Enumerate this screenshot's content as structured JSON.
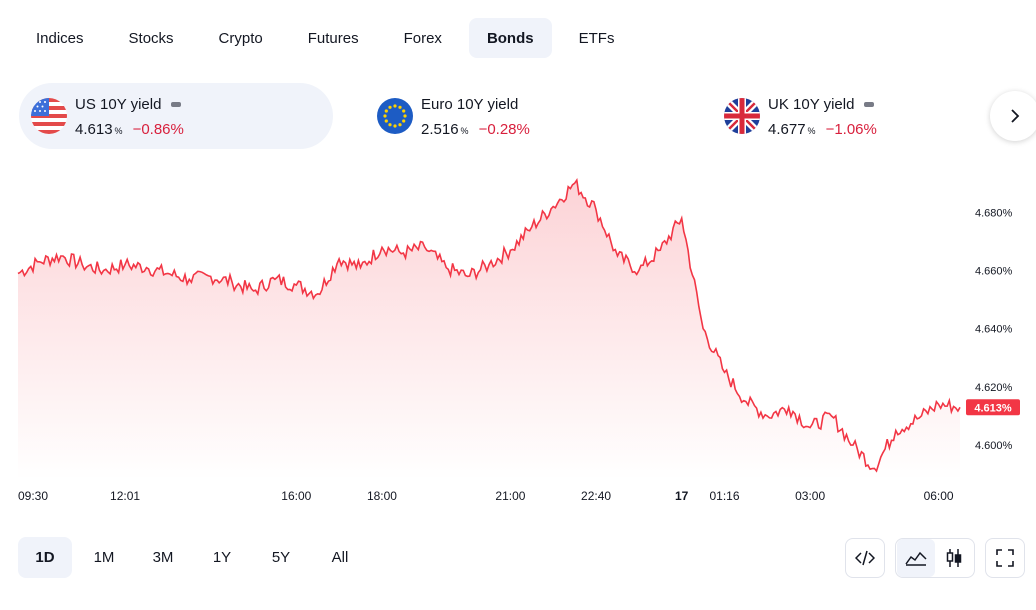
{
  "tabs": [
    {
      "label": "Indices",
      "active": false
    },
    {
      "label": "Stocks",
      "active": false
    },
    {
      "label": "Crypto",
      "active": false
    },
    {
      "label": "Futures",
      "active": false
    },
    {
      "label": "Forex",
      "active": false
    },
    {
      "label": "Bonds",
      "active": true
    },
    {
      "label": "ETFs",
      "active": false
    }
  ],
  "quotes": [
    {
      "name": "US 10Y yield",
      "value": "4.613",
      "unit": "%",
      "change": "−0.86%",
      "flag": "us-flag-icon",
      "active": true
    },
    {
      "name": "Euro 10Y yield",
      "value": "2.516",
      "unit": "%",
      "change": "−0.28%",
      "flag": "eu-flag-icon",
      "active": false
    },
    {
      "name": "UK 10Y yield",
      "value": "4.677",
      "unit": "%",
      "change": "−1.06%",
      "flag": "uk-flag-icon",
      "active": false
    }
  ],
  "colors": {
    "line": "#f23645",
    "change_negative": "#d81f3c",
    "active_bg": "#f0f3fa"
  },
  "chart_data": {
    "type": "area",
    "series": [
      {
        "x": [
          "09:30",
          "10:00",
          "10:30",
          "11:00",
          "11:30",
          "12:01",
          "12:30",
          "13:00",
          "13:30",
          "14:00",
          "14:30",
          "15:00",
          "15:30",
          "16:00",
          "16:30",
          "17:00",
          "17:30",
          "18:00",
          "18:30",
          "19:00",
          "19:30",
          "20:00",
          "20:30",
          "21:00",
          "21:30",
          "22:00",
          "22:20",
          "22:40",
          "23:00",
          "23:30",
          "00:00",
          "00:30",
          "01:00",
          "01:16",
          "01:30",
          "02:00",
          "02:30",
          "03:00",
          "03:30",
          "04:00",
          "04:30",
          "05:00",
          "05:30",
          "06:00",
          "06:20"
        ],
        "values": [
          4.659,
          4.663,
          4.665,
          4.662,
          4.66,
          4.662,
          4.661,
          4.659,
          4.657,
          4.658,
          4.656,
          4.653,
          4.657,
          4.655,
          4.652,
          4.664,
          4.661,
          4.668,
          4.666,
          4.668,
          4.661,
          4.658,
          4.662,
          4.667,
          4.675,
          4.682,
          4.69,
          4.681,
          4.665,
          4.66,
          4.667,
          4.678,
          4.64,
          4.625,
          4.615,
          4.61,
          4.613,
          4.606,
          4.61,
          4.6,
          4.592,
          4.605,
          4.609,
          4.614,
          4.613
        ]
      }
    ],
    "x_ticks": [
      "09:30",
      "12:01",
      "16:00",
      "18:00",
      "21:00",
      "22:40",
      "17",
      "01:16",
      "03:00",
      "06:00"
    ],
    "y_ticks": [
      "4.680%",
      "4.660%",
      "4.640%",
      "4.620%",
      "4.600%"
    ],
    "ylim": [
      4.588,
      4.698
    ],
    "last_label": "4.613%",
    "grid": false
  },
  "ranges": [
    {
      "label": "1D",
      "active": true
    },
    {
      "label": "1M",
      "active": false
    },
    {
      "label": "3M",
      "active": false
    },
    {
      "label": "1Y",
      "active": false
    },
    {
      "label": "5Y",
      "active": false
    },
    {
      "label": "All",
      "active": false
    }
  ]
}
